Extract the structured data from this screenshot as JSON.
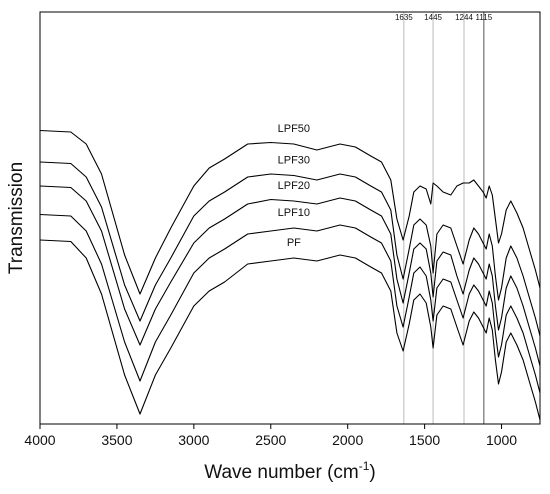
{
  "chart_data": {
    "type": "line",
    "xlabel": "Wave number (cm",
    "xlabel_sup": "-1",
    "xlabel_end": ")",
    "ylabel": "Transmission",
    "xlim": [
      4000,
      750
    ],
    "x_reversed": true,
    "x_ticks": [
      4000,
      3500,
      3000,
      2500,
      2000,
      1500,
      1000
    ],
    "y_ticks_shown": false,
    "reference_lines": [
      {
        "x": 1635,
        "label": "1635",
        "color": "#bbbbbb"
      },
      {
        "x": 1445,
        "label": "1445",
        "color": "#bbbbbb"
      },
      {
        "x": 1244,
        "label": "1244",
        "color": "#bbbbbb"
      },
      {
        "x": 1115,
        "label": "1115",
        "color": "#555555"
      }
    ],
    "series": [
      {
        "name": "LPF50",
        "label_x": 2350,
        "x": [
          4000,
          3800,
          3700,
          3600,
          3450,
          3350,
          3250,
          3150,
          3000,
          2900,
          2800,
          2650,
          2500,
          2350,
          2200,
          2050,
          1950,
          1850,
          1780,
          1720,
          1680,
          1640,
          1600,
          1570,
          1530,
          1490,
          1460,
          1445,
          1420,
          1380,
          1330,
          1290,
          1250,
          1210,
          1180,
          1150,
          1120,
          1100,
          1080,
          1060,
          1040,
          1020,
          1000,
          970,
          940,
          900,
          860,
          820,
          780,
          750
        ],
        "y": [
          0.945,
          0.94,
          0.9,
          0.8,
          0.53,
          0.4,
          0.52,
          0.62,
          0.76,
          0.82,
          0.85,
          0.9,
          0.905,
          0.9,
          0.88,
          0.9,
          0.89,
          0.86,
          0.84,
          0.78,
          0.65,
          0.58,
          0.66,
          0.74,
          0.76,
          0.75,
          0.7,
          0.77,
          0.76,
          0.74,
          0.73,
          0.76,
          0.77,
          0.77,
          0.78,
          0.76,
          0.74,
          0.72,
          0.76,
          0.73,
          0.65,
          0.57,
          0.6,
          0.68,
          0.71,
          0.67,
          0.62,
          0.55,
          0.48,
          0.42
        ]
      },
      {
        "name": "LPF30",
        "label_x": 2350,
        "x": [
          4000,
          3800,
          3700,
          3600,
          3450,
          3350,
          3250,
          3150,
          3000,
          2900,
          2800,
          2650,
          2500,
          2350,
          2200,
          2050,
          1950,
          1850,
          1780,
          1720,
          1680,
          1640,
          1600,
          1570,
          1530,
          1490,
          1460,
          1445,
          1420,
          1380,
          1330,
          1290,
          1250,
          1210,
          1180,
          1150,
          1120,
          1100,
          1080,
          1060,
          1040,
          1020,
          1000,
          970,
          940,
          900,
          860,
          820,
          780,
          750
        ],
        "y": [
          0.84,
          0.835,
          0.79,
          0.69,
          0.43,
          0.31,
          0.43,
          0.52,
          0.66,
          0.71,
          0.74,
          0.79,
          0.8,
          0.795,
          0.78,
          0.8,
          0.79,
          0.76,
          0.74,
          0.68,
          0.53,
          0.45,
          0.55,
          0.63,
          0.65,
          0.63,
          0.56,
          0.47,
          0.6,
          0.63,
          0.62,
          0.56,
          0.5,
          0.58,
          0.62,
          0.6,
          0.57,
          0.55,
          0.6,
          0.56,
          0.46,
          0.38,
          0.42,
          0.52,
          0.56,
          0.52,
          0.46,
          0.39,
          0.32,
          0.26
        ]
      },
      {
        "name": "LPF20",
        "label_x": 2350,
        "x": [
          4000,
          3800,
          3700,
          3600,
          3450,
          3350,
          3250,
          3150,
          3000,
          2900,
          2800,
          2650,
          2500,
          2350,
          2200,
          2050,
          1950,
          1850,
          1780,
          1720,
          1680,
          1640,
          1600,
          1570,
          1530,
          1490,
          1460,
          1445,
          1420,
          1380,
          1330,
          1290,
          1250,
          1210,
          1180,
          1150,
          1120,
          1100,
          1080,
          1060,
          1040,
          1020,
          1000,
          970,
          940,
          900,
          860,
          820,
          780,
          750
        ],
        "y": [
          0.76,
          0.755,
          0.71,
          0.61,
          0.35,
          0.23,
          0.35,
          0.44,
          0.57,
          0.62,
          0.65,
          0.7,
          0.715,
          0.71,
          0.7,
          0.72,
          0.71,
          0.68,
          0.66,
          0.6,
          0.45,
          0.37,
          0.47,
          0.55,
          0.57,
          0.55,
          0.47,
          0.39,
          0.51,
          0.54,
          0.53,
          0.46,
          0.4,
          0.48,
          0.52,
          0.5,
          0.47,
          0.45,
          0.5,
          0.46,
          0.36,
          0.28,
          0.32,
          0.42,
          0.46,
          0.42,
          0.36,
          0.29,
          0.22,
          0.16
        ]
      },
      {
        "name": "LPF10",
        "label_x": 2350,
        "x": [
          4000,
          3800,
          3700,
          3600,
          3450,
          3350,
          3250,
          3150,
          3000,
          2900,
          2800,
          2650,
          2500,
          2350,
          2200,
          2050,
          1950,
          1850,
          1780,
          1720,
          1680,
          1640,
          1600,
          1570,
          1530,
          1490,
          1460,
          1445,
          1420,
          1380,
          1330,
          1290,
          1250,
          1210,
          1180,
          1150,
          1120,
          1100,
          1080,
          1060,
          1040,
          1020,
          1000,
          970,
          940,
          900,
          860,
          820,
          780,
          750
        ],
        "y": [
          0.665,
          0.66,
          0.61,
          0.5,
          0.24,
          0.11,
          0.24,
          0.33,
          0.47,
          0.52,
          0.55,
          0.6,
          0.61,
          0.62,
          0.61,
          0.63,
          0.62,
          0.59,
          0.57,
          0.51,
          0.36,
          0.29,
          0.39,
          0.47,
          0.49,
          0.46,
          0.38,
          0.31,
          0.42,
          0.45,
          0.44,
          0.38,
          0.32,
          0.4,
          0.43,
          0.41,
          0.38,
          0.36,
          0.41,
          0.37,
          0.27,
          0.19,
          0.23,
          0.33,
          0.36,
          0.32,
          0.27,
          0.2,
          0.13,
          0.07
        ]
      },
      {
        "name": "PF",
        "label_x": 2350,
        "x": [
          4000,
          3800,
          3700,
          3600,
          3450,
          3350,
          3250,
          3150,
          3000,
          2900,
          2800,
          2650,
          2500,
          2350,
          2200,
          2050,
          1950,
          1850,
          1780,
          1720,
          1680,
          1640,
          1600,
          1570,
          1530,
          1490,
          1460,
          1445,
          1420,
          1380,
          1330,
          1290,
          1250,
          1210,
          1180,
          1150,
          1120,
          1100,
          1080,
          1060,
          1040,
          1020,
          1000,
          970,
          940,
          900,
          860,
          820,
          780,
          750
        ],
        "y": [
          0.58,
          0.575,
          0.52,
          0.4,
          0.13,
          0.0,
          0.13,
          0.22,
          0.36,
          0.41,
          0.44,
          0.5,
          0.51,
          0.52,
          0.51,
          0.53,
          0.52,
          0.49,
          0.47,
          0.41,
          0.27,
          0.21,
          0.3,
          0.38,
          0.4,
          0.37,
          0.29,
          0.22,
          0.33,
          0.36,
          0.35,
          0.29,
          0.23,
          0.31,
          0.34,
          0.32,
          0.29,
          0.27,
          0.32,
          0.28,
          0.18,
          0.1,
          0.14,
          0.24,
          0.27,
          0.23,
          0.18,
          0.11,
          0.04,
          -0.02
        ]
      }
    ]
  }
}
